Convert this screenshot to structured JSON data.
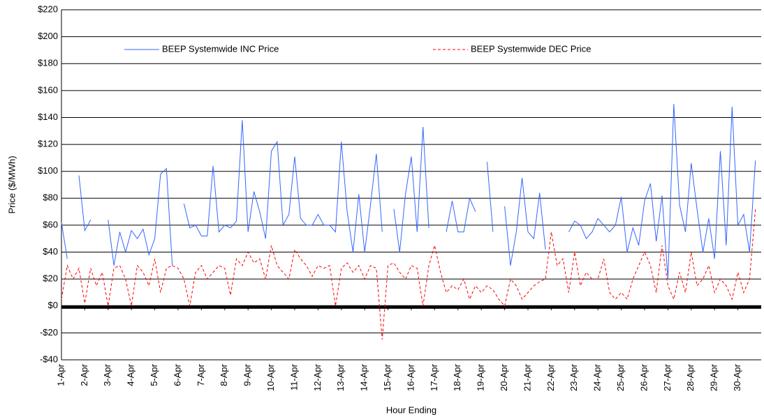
{
  "chart_data": {
    "type": "line",
    "x_label": "Hour Ending",
    "y_label": "Price ($/MWh)",
    "xlim": [
      0,
      720
    ],
    "xticks": [
      {
        "value": 0,
        "label": "1-Apr"
      },
      {
        "value": 24,
        "label": "2-Apr"
      },
      {
        "value": 48,
        "label": "3-Apr"
      },
      {
        "value": 72,
        "label": "4-Apr"
      },
      {
        "value": 96,
        "label": "5-Apr"
      },
      {
        "value": 120,
        "label": "6-Apr"
      },
      {
        "value": 144,
        "label": "7-Apr"
      },
      {
        "value": 168,
        "label": "8-Apr"
      },
      {
        "value": 192,
        "label": "9-Apr"
      },
      {
        "value": 216,
        "label": "10-Apr"
      },
      {
        "value": 240,
        "label": "11-Apr"
      },
      {
        "value": 264,
        "label": "12-Apr"
      },
      {
        "value": 288,
        "label": "13-Apr"
      },
      {
        "value": 312,
        "label": "14-Apr"
      },
      {
        "value": 336,
        "label": "15-Apr"
      },
      {
        "value": 360,
        "label": "16-Apr"
      },
      {
        "value": 384,
        "label": "17-Apr"
      },
      {
        "value": 408,
        "label": "18-Apr"
      },
      {
        "value": 432,
        "label": "19-Apr"
      },
      {
        "value": 456,
        "label": "20-Apr"
      },
      {
        "value": 480,
        "label": "21-Apr"
      },
      {
        "value": 504,
        "label": "22-Apr"
      },
      {
        "value": 528,
        "label": "23-Apr"
      },
      {
        "value": 552,
        "label": "24-Apr"
      },
      {
        "value": 576,
        "label": "25-Apr"
      },
      {
        "value": 600,
        "label": "26-Apr"
      },
      {
        "value": 624,
        "label": "27-Apr"
      },
      {
        "value": 648,
        "label": "28-Apr"
      },
      {
        "value": 672,
        "label": "29-Apr"
      },
      {
        "value": 696,
        "label": "30-Apr"
      }
    ],
    "ylim": [
      -40,
      220
    ],
    "yticks": [
      {
        "value": -40,
        "label": "-$40"
      },
      {
        "value": -20,
        "label": "-$20"
      },
      {
        "value": 0,
        "label": "$0"
      },
      {
        "value": 20,
        "label": "$20"
      },
      {
        "value": 40,
        "label": "$40"
      },
      {
        "value": 60,
        "label": "$60"
      },
      {
        "value": 80,
        "label": "$80"
      },
      {
        "value": 100,
        "label": "$100"
      },
      {
        "value": 120,
        "label": "$120"
      },
      {
        "value": 140,
        "label": "$140"
      },
      {
        "value": 160,
        "label": "$160"
      },
      {
        "value": 180,
        "label": "$180"
      },
      {
        "value": 200,
        "label": "$200"
      },
      {
        "value": 220,
        "label": "$220"
      }
    ],
    "grid": true,
    "legend": "top",
    "x": [
      0,
      6,
      12,
      18,
      24,
      30,
      36,
      42,
      48,
      54,
      60,
      66,
      72,
      78,
      84,
      90,
      96,
      102,
      108,
      114,
      120,
      126,
      132,
      138,
      144,
      150,
      156,
      162,
      168,
      174,
      180,
      186,
      192,
      198,
      204,
      210,
      216,
      222,
      228,
      234,
      240,
      246,
      252,
      258,
      264,
      270,
      276,
      282,
      288,
      294,
      300,
      306,
      312,
      318,
      324,
      330,
      336,
      342,
      348,
      354,
      360,
      366,
      372,
      378,
      384,
      390,
      396,
      402,
      408,
      414,
      420,
      426,
      432,
      438,
      444,
      450,
      456,
      462,
      468,
      474,
      480,
      486,
      492,
      498,
      504,
      510,
      516,
      522,
      528,
      534,
      540,
      546,
      552,
      558,
      564,
      570,
      576,
      582,
      588,
      594,
      600,
      606,
      612,
      618,
      624,
      630,
      636,
      642,
      648,
      654,
      660,
      666,
      672,
      678,
      684,
      690,
      696,
      702,
      708,
      714
    ],
    "series": [
      {
        "name": "BEEP Systemwide INC Price",
        "color": "#3366ff",
        "dashed": false,
        "values": [
          62,
          35,
          null,
          97,
          56,
          64,
          null,
          null,
          64,
          30,
          55,
          40,
          56,
          50,
          57,
          38,
          50,
          98,
          102,
          30,
          null,
          76,
          58,
          60,
          52,
          52,
          104,
          55,
          60,
          58,
          63,
          138,
          55,
          85,
          70,
          50,
          115,
          122,
          60,
          68,
          111,
          65,
          60,
          60,
          68,
          60,
          60,
          55,
          122,
          70,
          40,
          83,
          40,
          75,
          113,
          55,
          null,
          72,
          40,
          83,
          111,
          55,
          133,
          58,
          null,
          null,
          55,
          78,
          55,
          55,
          80,
          70,
          null,
          107,
          55,
          null,
          74,
          30,
          55,
          95,
          55,
          50,
          84,
          42,
          null,
          40,
          null,
          55,
          63,
          60,
          50,
          55,
          65,
          60,
          55,
          60,
          81,
          40,
          58,
          45,
          78,
          91,
          48,
          82,
          20,
          150,
          75,
          55,
          106,
          72,
          40,
          65,
          35,
          115,
          45,
          148,
          60,
          68,
          40,
          108
        ]
      },
      {
        "name": "BEEP Systemwide DEC Price",
        "color": "#ff0000",
        "dashed": true,
        "values": [
          5,
          30,
          20,
          28,
          2,
          28,
          15,
          25,
          0,
          28,
          30,
          20,
          0,
          30,
          25,
          15,
          35,
          10,
          28,
          30,
          28,
          20,
          0,
          25,
          30,
          20,
          25,
          30,
          28,
          8,
          35,
          30,
          40,
          32,
          35,
          20,
          45,
          30,
          25,
          20,
          42,
          35,
          30,
          22,
          30,
          28,
          30,
          0,
          28,
          32,
          25,
          30,
          20,
          30,
          28,
          -25,
          30,
          32,
          25,
          20,
          30,
          28,
          0,
          30,
          45,
          25,
          10,
          15,
          12,
          20,
          5,
          15,
          10,
          15,
          12,
          5,
          0,
          20,
          15,
          5,
          10,
          15,
          18,
          20,
          55,
          30,
          35,
          10,
          40,
          15,
          25,
          20,
          20,
          35,
          10,
          5,
          10,
          5,
          20,
          30,
          40,
          30,
          10,
          45,
          15,
          5,
          25,
          10,
          40,
          15,
          20,
          30,
          10,
          20,
          15,
          5,
          25,
          10,
          20,
          72
        ]
      }
    ]
  }
}
